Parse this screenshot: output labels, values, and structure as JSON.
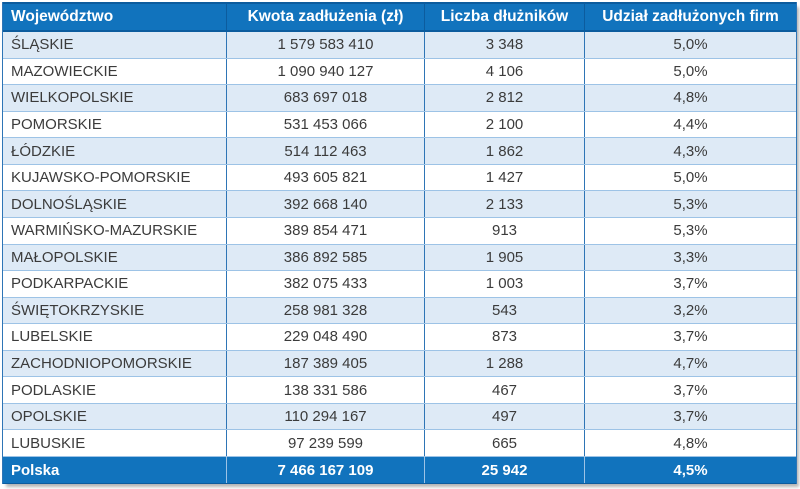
{
  "chart_data": {
    "type": "table",
    "columns": [
      "Województwo",
      "Kwota zadłużenia (zł)",
      "Liczba dłużników",
      "Udział zadłużonych firm"
    ],
    "rows": [
      [
        "ŚLĄSKIE",
        "1 579 583 410",
        "3 348",
        "5,0%"
      ],
      [
        "MAZOWIECKIE",
        "1 090 940 127",
        "4 106",
        "5,0%"
      ],
      [
        "WIELKOPOLSKIE",
        "683 697 018",
        "2 812",
        "4,8%"
      ],
      [
        "POMORSKIE",
        "531 453 066",
        "2 100",
        "4,4%"
      ],
      [
        "ŁÓDZKIE",
        "514 112 463",
        "1 862",
        "4,3%"
      ],
      [
        "KUJAWSKO-POMORSKIE",
        "493 605 821",
        "1 427",
        "5,0%"
      ],
      [
        "DOLNOŚLĄSKIE",
        "392 668 140",
        "2 133",
        "5,3%"
      ],
      [
        "WARMIŃSKO-MAZURSKIE",
        "389 854 471",
        "913",
        "5,3%"
      ],
      [
        "MAŁOPOLSKIE",
        "386 892 585",
        "1 905",
        "3,3%"
      ],
      [
        "PODKARPACKIE",
        "382 075 433",
        "1 003",
        "3,7%"
      ],
      [
        "ŚWIĘTOKRZYSKIE",
        "258 981 328",
        "543",
        "3,2%"
      ],
      [
        "LUBELSKIE",
        "229 048 490",
        "873",
        "3,7%"
      ],
      [
        "ZACHODNIOPOMORSKIE",
        "187 389 405",
        "1 288",
        "4,7%"
      ],
      [
        "PODLASKIE",
        "138 331 586",
        "467",
        "3,7%"
      ],
      [
        "OPOLSKIE",
        "110 294 167",
        "497",
        "3,7%"
      ],
      [
        "LUBUSKIE",
        "97 239 599",
        "665",
        "4,8%"
      ]
    ],
    "footer": [
      "Polska",
      "7 466 167 109",
      "25 942",
      "4,5%"
    ]
  },
  "colors": {
    "header_bg": "#1173BD",
    "header_text": "#FFFFFF",
    "header_border": "#0C5C9E",
    "row_alt_bg": "#DEEAF6",
    "row_bg": "#FFFFFF",
    "row_border": "#9DC3E6",
    "column_border": "#2E75B6",
    "body_text": "#3B3B3B"
  }
}
